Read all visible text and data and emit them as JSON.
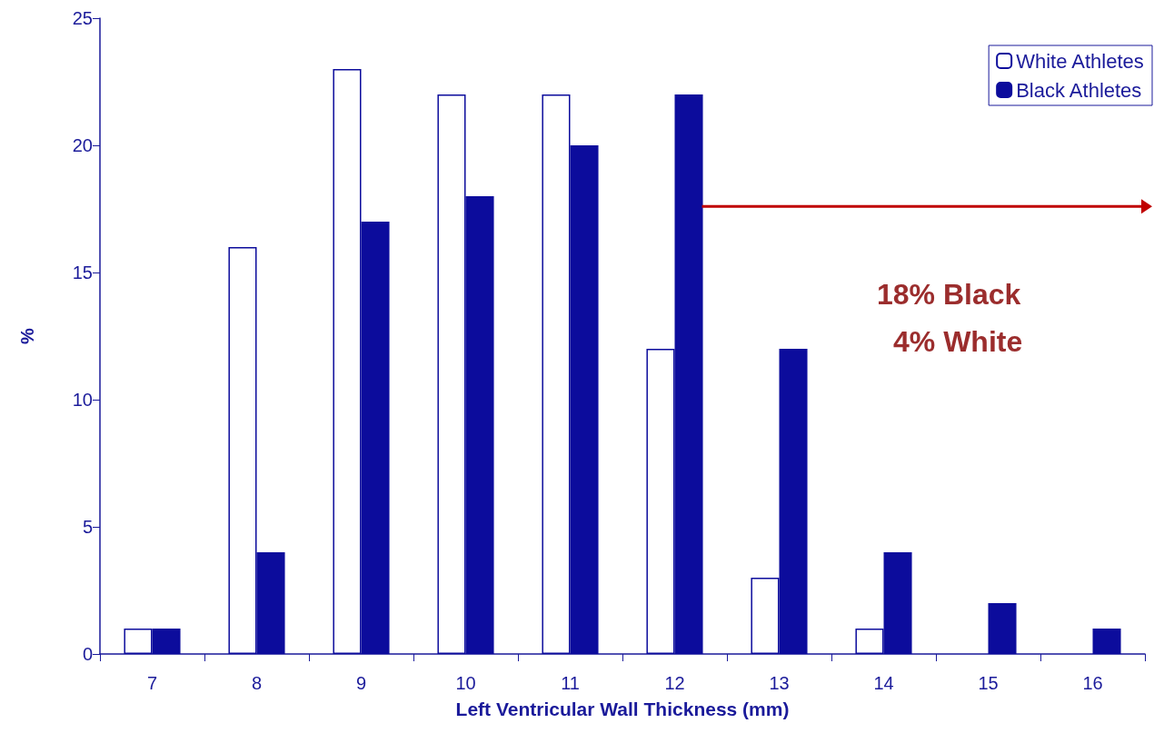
{
  "chart_data": {
    "type": "bar",
    "xlabel": "Left Ventricular Wall Thickness (mm)",
    "ylabel": "%",
    "categories": [
      "7",
      "8",
      "9",
      "10",
      "11",
      "12",
      "13",
      "14",
      "15",
      "16"
    ],
    "series": [
      {
        "name": "White Athletes",
        "color": "#ffffff",
        "values": [
          1,
          16,
          23,
          22,
          22,
          12,
          3,
          1,
          0,
          0
        ]
      },
      {
        "name": "Black Athletes",
        "color": "#0c0c9c",
        "values": [
          1,
          4,
          17,
          18,
          20,
          22,
          12,
          4,
          2,
          1
        ]
      }
    ],
    "ylim": [
      0,
      25
    ],
    "yticks": [
      0,
      5,
      10,
      15,
      20,
      25
    ],
    "grid": false,
    "legend": "top right",
    "annotations": [
      "18% Black",
      "4% White"
    ]
  }
}
